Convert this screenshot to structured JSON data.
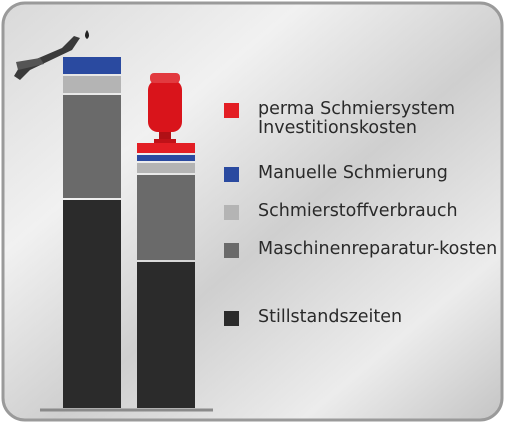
{
  "chart_data": {
    "type": "stacked-bar",
    "categories": [
      null,
      null
    ],
    "series": [
      {
        "name": "Stillstandszeiten",
        "color": "#2b2b2b",
        "values": [
          208,
          146
        ]
      },
      {
        "name": "Maschinenreparatur-kosten",
        "color": "#6a6a6a",
        "values": [
          103,
          85
        ]
      },
      {
        "name": "Schmierstoffverbrauch",
        "color": "#b4b4b4",
        "values": [
          17,
          10
        ]
      },
      {
        "name": "Manuelle Schmierung",
        "color": "#2a4aa0",
        "values": [
          17,
          6
        ]
      },
      {
        "name": "perma Schmiersystem Investitionskosten",
        "color": "#e31e24",
        "values": [
          0,
          10
        ]
      }
    ]
  }
}
